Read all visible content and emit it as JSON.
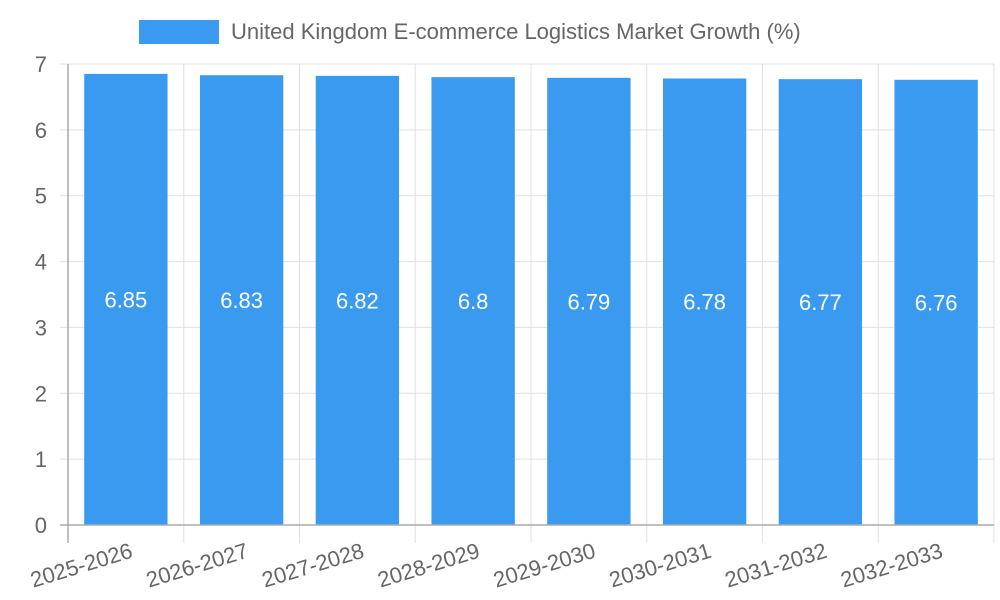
{
  "legend": {
    "label": "United Kingdom E-commerce Logistics Market Growth (%)",
    "color": "#3a9af0"
  },
  "y_axis": {
    "ticks": [
      "0",
      "1",
      "2",
      "3",
      "4",
      "5",
      "6",
      "7"
    ]
  },
  "x_axis": {
    "ticks": [
      "2025-2026",
      "2026-2027",
      "2027-2028",
      "2028-2029",
      "2029-2030",
      "2030-2031",
      "2031-2032",
      "2032-2033"
    ]
  },
  "bars": {
    "labels": [
      "6.85",
      "6.83",
      "6.82",
      "6.8",
      "6.79",
      "6.78",
      "6.77",
      "6.76"
    ]
  },
  "chart_data": {
    "type": "bar",
    "title": "",
    "categories": [
      "2025-2026",
      "2026-2027",
      "2027-2028",
      "2028-2029",
      "2029-2030",
      "2030-2031",
      "2031-2032",
      "2032-2033"
    ],
    "series": [
      {
        "name": "United Kingdom E-commerce Logistics Market Growth (%)",
        "values": [
          6.85,
          6.83,
          6.82,
          6.8,
          6.79,
          6.78,
          6.77,
          6.76
        ],
        "color": "#3a9af0"
      }
    ],
    "xlabel": "",
    "ylabel": "",
    "ylim": [
      0,
      7
    ],
    "yticks": [
      0,
      1,
      2,
      3,
      4,
      5,
      6,
      7
    ],
    "grid": true,
    "legend_position": "top",
    "data_labels": true
  }
}
